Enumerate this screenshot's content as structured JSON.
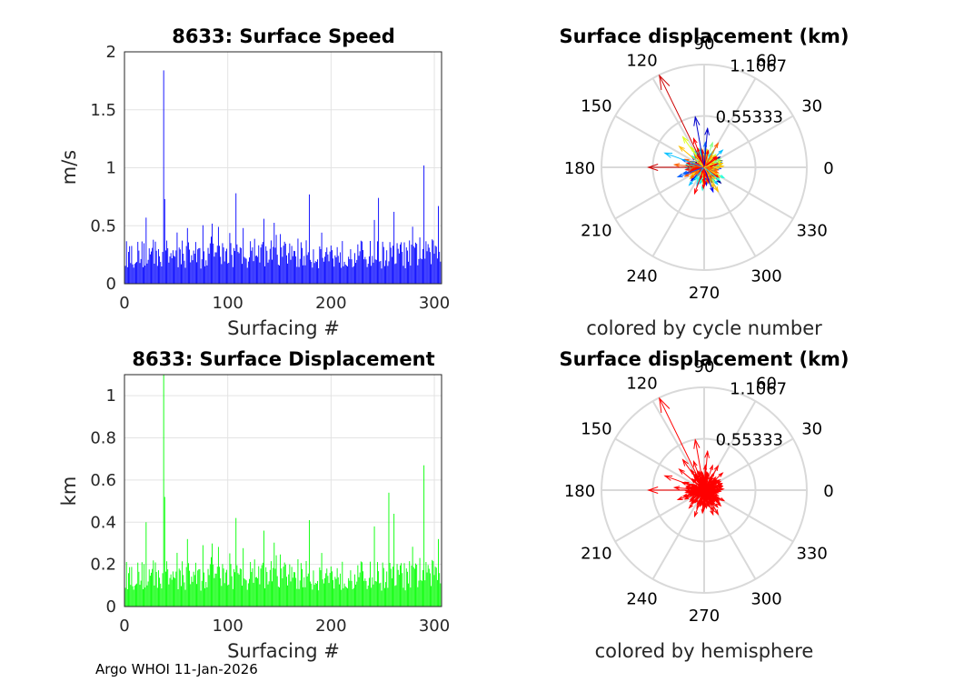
{
  "footer": "Argo WHOI 11-Jan-2026",
  "chart_data": [
    {
      "type": "bar",
      "title": "8633: Surface Speed",
      "xlabel": "Surfacing #",
      "ylabel": "m/s",
      "xlim": [
        0,
        307
      ],
      "ylim": [
        0,
        2
      ],
      "xticks": [
        "0",
        "100",
        "200",
        "300"
      ],
      "yticks": [
        "0",
        "0.5",
        "1",
        "1.5",
        "2"
      ],
      "color": "#0000ff",
      "spikes": [
        [
          38,
          1.84
        ],
        [
          39,
          0.73
        ],
        [
          108,
          0.78
        ],
        [
          179,
          0.77
        ],
        [
          246,
          0.74
        ],
        [
          290,
          1.02
        ],
        [
          304,
          0.67
        ],
        [
          21,
          0.57
        ],
        [
          61,
          0.48
        ],
        [
          135,
          0.56
        ],
        [
          261,
          0.62
        ],
        [
          242,
          0.55
        ]
      ]
    },
    {
      "type": "bar",
      "title": "8633: Surface Displacement",
      "xlabel": "Surfacing #",
      "ylabel": "km",
      "xlim": [
        0,
        307
      ],
      "ylim": [
        0,
        1.1
      ],
      "xticks": [
        "0",
        "100",
        "200",
        "300"
      ],
      "yticks": [
        "0",
        "0.2",
        "0.4",
        "0.6",
        "0.8",
        "1"
      ],
      "color": "#00ff00",
      "spikes": [
        [
          38,
          1.1
        ],
        [
          39,
          0.52
        ],
        [
          108,
          0.42
        ],
        [
          179,
          0.41
        ],
        [
          256,
          0.54
        ],
        [
          290,
          0.67
        ],
        [
          304,
          0.32
        ],
        [
          21,
          0.4
        ],
        [
          61,
          0.32
        ],
        [
          135,
          0.36
        ],
        [
          261,
          0.44
        ],
        [
          242,
          0.38
        ]
      ]
    },
    {
      "type": "polar-compass",
      "title": "Surface displacement (km)",
      "caption": "colored by cycle number",
      "rmax": 1.1067,
      "rticks": [
        "0.55333",
        "1.1067"
      ],
      "angle_ticks": [
        "0",
        "30",
        "60",
        "90",
        "120",
        "150",
        "180",
        "210",
        "240",
        "270",
        "300",
        "330"
      ],
      "coloring": "cycle",
      "arrows": [
        [
          116,
          1.1
        ],
        [
          180,
          0.6
        ],
        [
          100,
          0.55
        ],
        [
          160,
          0.45
        ],
        [
          85,
          0.42
        ],
        [
          125,
          0.4
        ],
        [
          140,
          0.35
        ],
        [
          60,
          0.3
        ],
        [
          250,
          0.3
        ],
        [
          290,
          0.28
        ],
        [
          200,
          0.3
        ],
        [
          230,
          0.25
        ],
        [
          320,
          0.22
        ],
        [
          20,
          0.2
        ],
        [
          300,
          0.3
        ],
        [
          175,
          0.32
        ],
        [
          110,
          0.33
        ]
      ]
    },
    {
      "type": "polar-compass",
      "title": "Surface displacement (km)",
      "caption": "colored by hemisphere",
      "rmax": 1.1067,
      "rticks": [
        "0.55333",
        "1.1067"
      ],
      "angle_ticks": [
        "0",
        "30",
        "60",
        "90",
        "120",
        "150",
        "180",
        "210",
        "240",
        "270",
        "300",
        "330"
      ],
      "coloring": "hemisphere",
      "arrows": [
        [
          116,
          1.1
        ],
        [
          180,
          0.6
        ],
        [
          100,
          0.55
        ],
        [
          160,
          0.45
        ],
        [
          85,
          0.42
        ],
        [
          125,
          0.4
        ],
        [
          140,
          0.35
        ],
        [
          60,
          0.3
        ],
        [
          250,
          0.3
        ],
        [
          290,
          0.28
        ],
        [
          200,
          0.3
        ],
        [
          230,
          0.25
        ],
        [
          320,
          0.22
        ],
        [
          20,
          0.2
        ],
        [
          300,
          0.3
        ],
        [
          175,
          0.32
        ],
        [
          110,
          0.33
        ]
      ]
    }
  ]
}
